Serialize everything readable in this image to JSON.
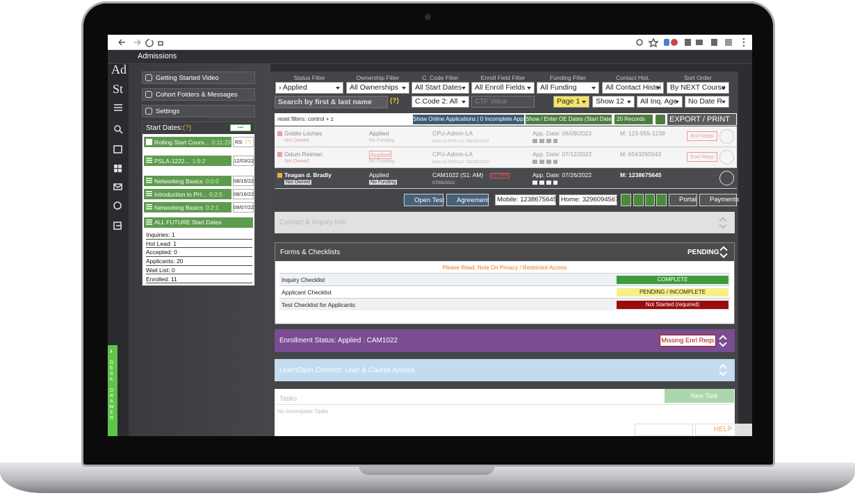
{
  "app": {
    "title": "Admissions",
    "logo": [
      "Ad",
      "St"
    ]
  },
  "menu": [
    "Getting Started Video",
    "Cohort Folders & Messages",
    "Settings"
  ],
  "start_dates": {
    "title": "Start Dates:",
    "help": "(?)",
    "more": "•••",
    "rows": [
      {
        "name": "Rolling Start Cours...",
        "counts": "0:11:23",
        "date": "RS",
        "help": "(?)"
      },
      {
        "name": "PSLA-1222...",
        "counts": "1:9:2",
        "date": "12/03/22"
      },
      {
        "name": "Networking Basics",
        "counts": "0:0:0",
        "date": "08/15/22"
      },
      {
        "name": "Introduction to PH...",
        "counts": "0:2:5",
        "date": "08/16/22"
      },
      {
        "name": "Networking Basics",
        "counts": "0:2:1",
        "date": "09/07/22"
      }
    ],
    "all_future": "ALL FUTURE Start Dates",
    "stats": [
      "Inquiries: 1",
      "Hot Lead: 1",
      "Accepted: 0",
      "Applicants: 20",
      "Wait List: 0",
      "Enrolled: 11"
    ]
  },
  "drawer": {
    "arrow": "›",
    "label": "DESK DRAWER"
  },
  "filters": {
    "labels": [
      "Status Filter",
      "Ownership Filter",
      "C. Code Filter",
      "Enroll Field Filter",
      "Funding Filter",
      "Contact Hist.",
      "Sort Order"
    ],
    "selects": [
      "› Applied",
      "All Ownerships",
      "All Start Dates",
      "All Enroll Fields",
      "All Funding",
      "All Contact Histoi",
      "By NEXT Course"
    ],
    "search": "Search by first & last name",
    "search_help": "(?)",
    "code2": "C.Code 2: All",
    "ctf": "CTF Value",
    "page": "Page 1",
    "show": "Show 12",
    "inq_age": "All Inq. Age",
    "date_range": "No Date R",
    "reset": "reset filters: control + z",
    "online": "Show Online Applications | 0 Incomplete Apps",
    "oe_dates": "Show / Enter OE Dates (Start Dates)",
    "records": "20 Records",
    "export": "EXPORT / PRINT"
  },
  "records": [
    {
      "name": "Goldie Loches",
      "owner": "Not Owned",
      "status": "Applied",
      "funding": "No Funding",
      "code": "CPU-Admin-LA",
      "course": "Intro to PHP-LA: 08/16/2022",
      "app_date": "App. Date: 06/09/2022",
      "phone": "M: 123-555-1238",
      "action": "Enrl Reqs"
    },
    {
      "name": "Odum Reiman",
      "owner": "Not Owned",
      "status": "Applied",
      "funding": "No Funding",
      "code": "CPU-Admin-LA",
      "course": "Intro to PHP-LA: 08/16/2022",
      "app_date": "App. Date: 07/12/2022",
      "phone": "M: 6543265543",
      "action": "Enrl Reqs"
    },
    {
      "name": "Teagan d. Bradly",
      "owner": "Not Owned",
      "status": "Applied",
      "funding": "No Funding",
      "code": "CAM1022 (S1: AM)",
      "tag": "LD USER",
      "course": "07/05/2022",
      "app_date": "App. Date: 07/26/2022",
      "phone": "M: 1238675645"
    }
  ],
  "actions": {
    "open_test": "Open Test",
    "agreement": "Agreement",
    "mobile": "Mobile: 1238675645",
    "home": "Home: 3296094567",
    "portal": "Portal",
    "payments": "Payments"
  },
  "contact": {
    "title": "Contact & Inquiry Info"
  },
  "forms": {
    "title": "Forms & Checklists",
    "status": "PENDING",
    "note": "Please Read: Note On Privacy / Restricted Access",
    "checklists": [
      {
        "name": "Inquiry Checklist",
        "status": "COMPLETE",
        "color": "#3f9b3a",
        "text_color": "#ffffff"
      },
      {
        "name": "Applicant Checklist",
        "status": "PENDING / INCOMPLETE",
        "color": "#f6f08a",
        "text_color": "#222222"
      },
      {
        "name": "Test Checklist for Applicants",
        "status": "Not Started (required)",
        "color": "#9b0d0d",
        "text_color": "#ffffff"
      }
    ]
  },
  "enrollment": {
    "title": "Enrollment Status: Applied : CAM1022",
    "button": "Missing Enrl Reqs"
  },
  "learndash": {
    "title": "LearnDash Connect: User & Course Access"
  },
  "tasks": {
    "title": "Tasks",
    "button": "New Task",
    "empty": "No incomplete Tasks"
  },
  "help": "HELP"
}
